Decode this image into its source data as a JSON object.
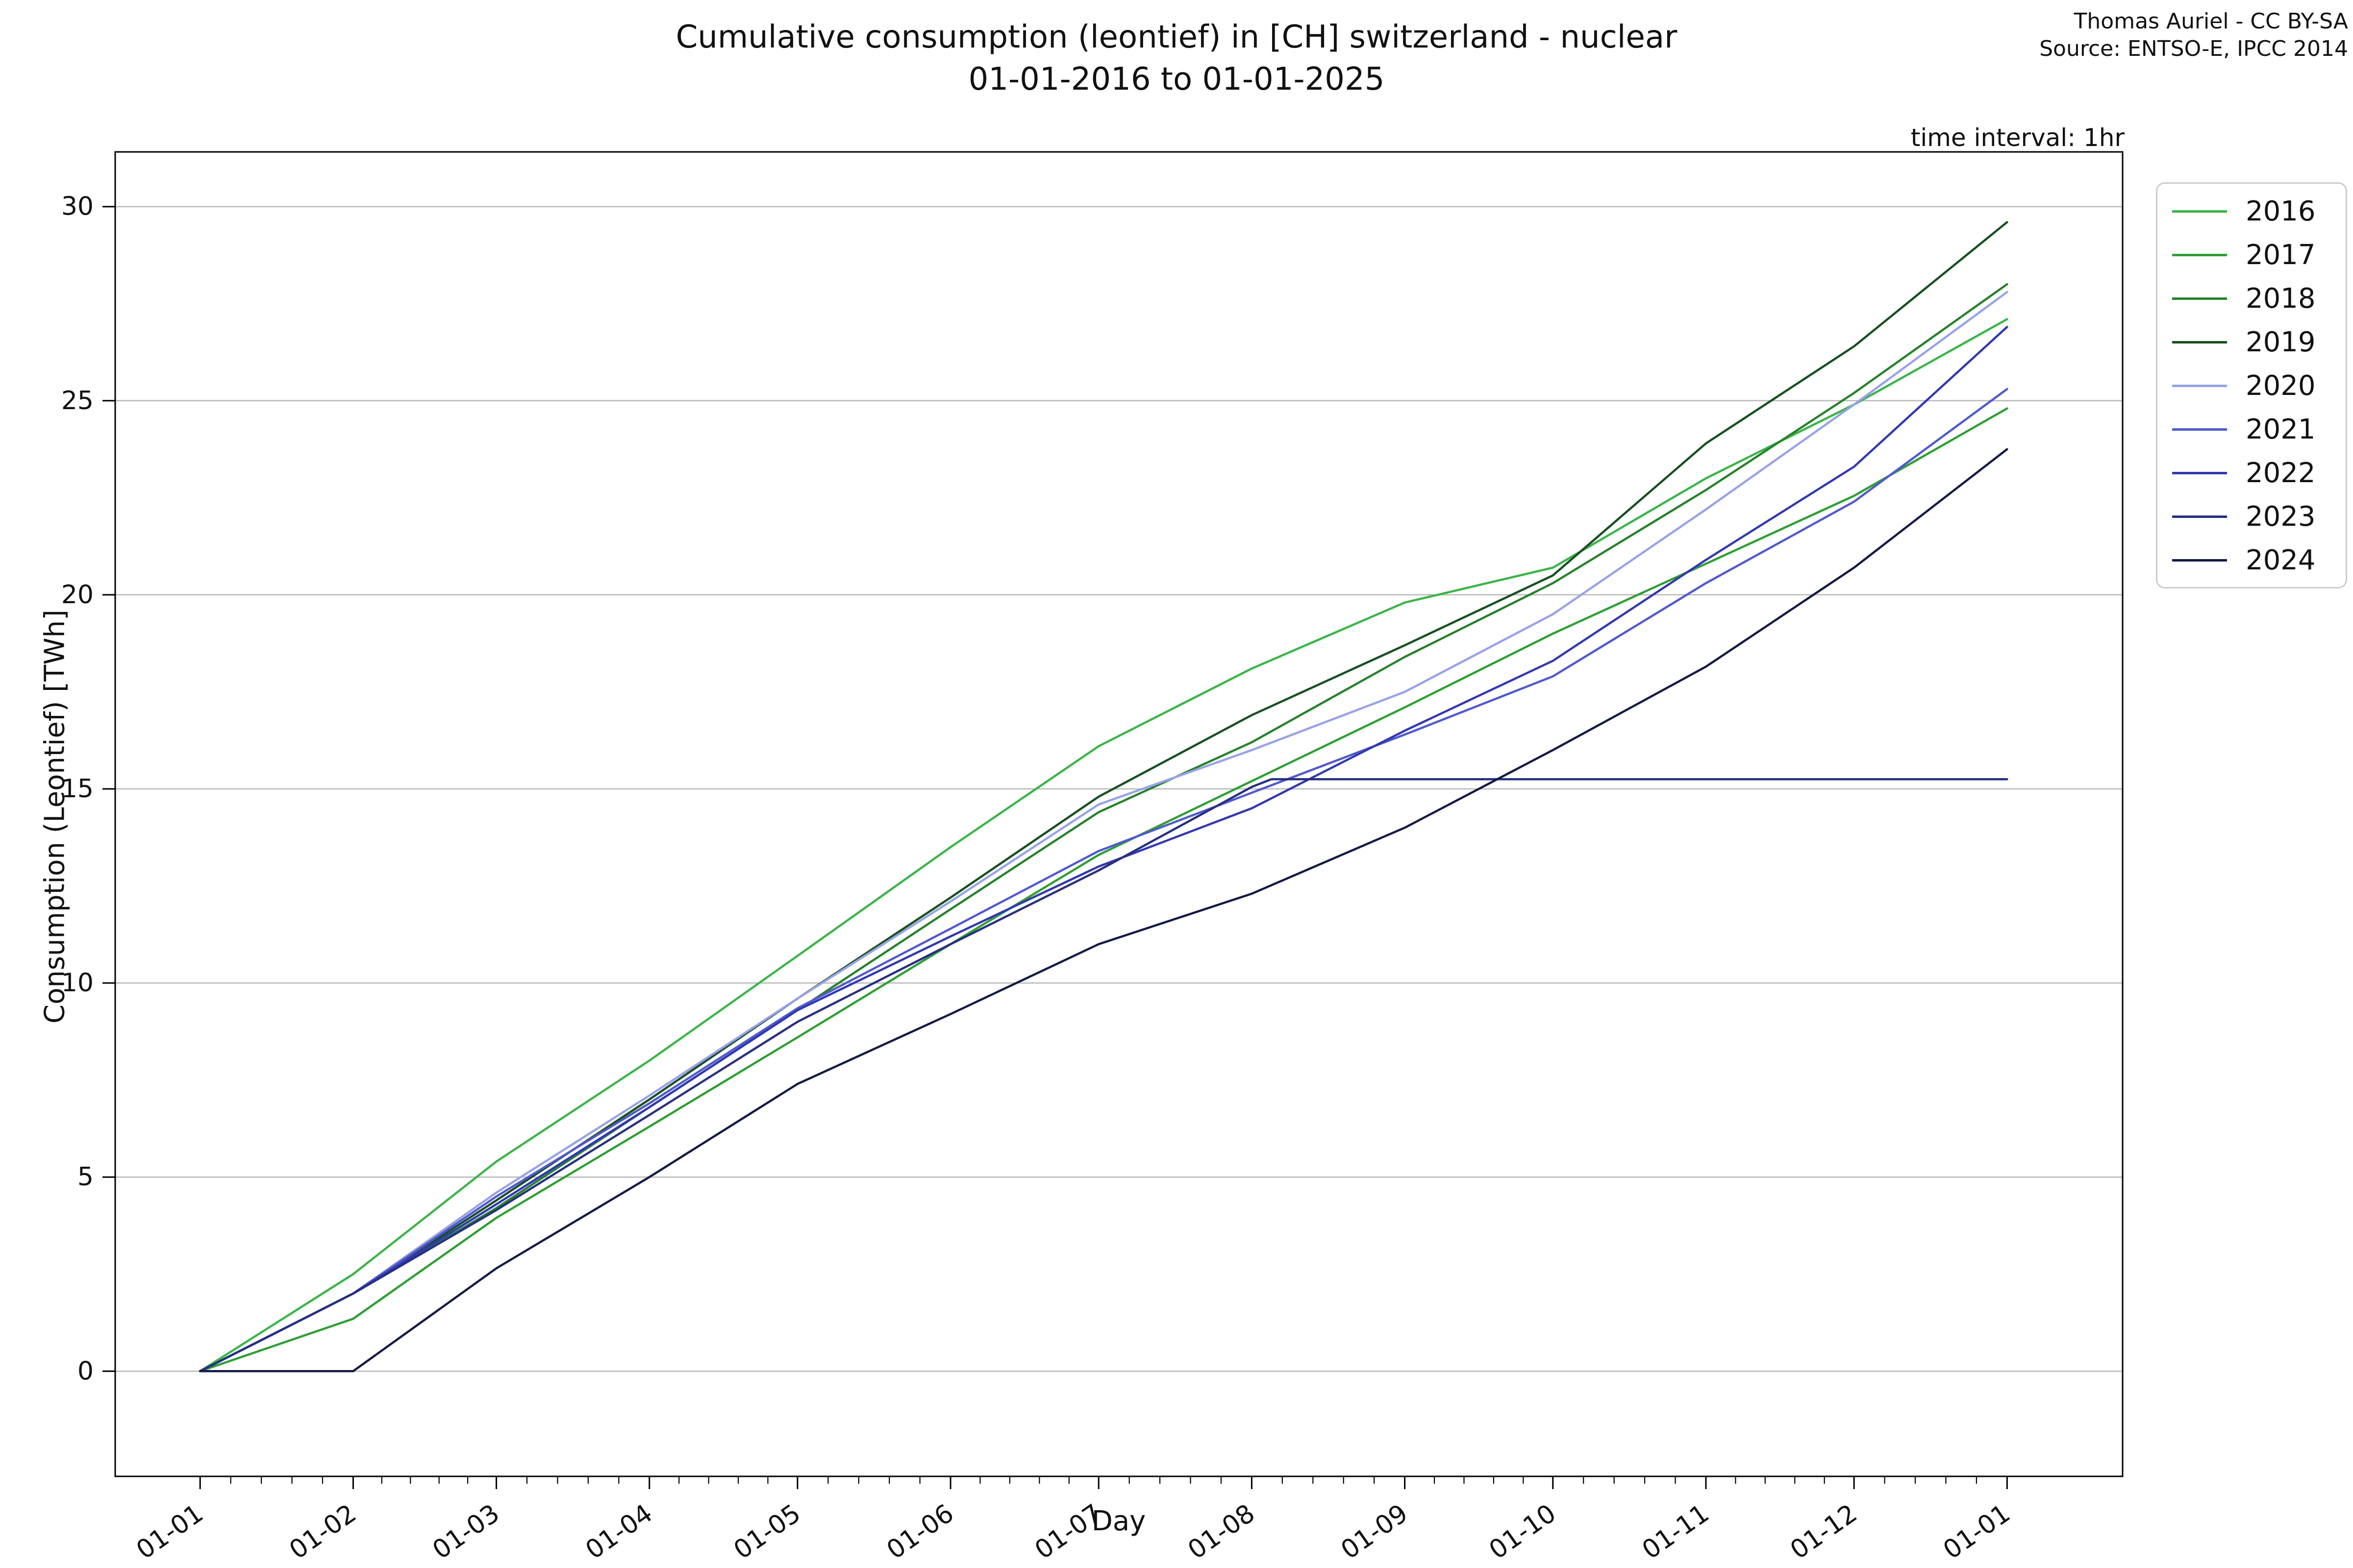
{
  "header": {
    "title_line1": "Cumulative consumption (leontief) in [CH] switzerland - nuclear",
    "title_line2": "01-01-2016 to 01-01-2025",
    "attribution_line1": "Thomas Auriel - CC BY-SA",
    "attribution_line2": "Source: ENTSO-E, IPCC 2014",
    "annotation": "time interval: 1hr"
  },
  "chart_data": {
    "type": "line",
    "title": "Cumulative consumption (leontief) in [CH] switzerland - nuclear 01-01-2016 to 01-01-2025",
    "xlabel": "Day",
    "ylabel": "Consumption (Leontief) [TWh]",
    "x_unit": "day of year (all years overlaid Jan 1 - Jan 1)",
    "xlim": [
      -17.2,
      389.4
    ],
    "ylim": [
      -2.71,
      31.41
    ],
    "x_ticks": {
      "positions": [
        0,
        31,
        60,
        91,
        121,
        152,
        182,
        213,
        244,
        274,
        305,
        335,
        366
      ],
      "labels": [
        "01-01",
        "01-02",
        "01-03",
        "01-04",
        "01-05",
        "01-06",
        "01-07",
        "01-08",
        "01-09",
        "01-10",
        "01-11",
        "01-12",
        "01-01"
      ],
      "label_rotation_deg": -35,
      "minor_subdivisions": 5
    },
    "y_ticks": [
      0,
      5,
      10,
      15,
      20,
      25,
      30
    ],
    "grid": {
      "horizontal": true,
      "vertical": false,
      "color": "#b9b9b9"
    },
    "legend_position": "upper-right-outside",
    "series": [
      {
        "name": "2016",
        "color": "#3cb44a",
        "x": [
          0,
          31,
          60,
          91,
          121,
          152,
          182,
          213,
          244,
          274,
          305,
          335,
          366
        ],
        "y": [
          0,
          2.5,
          5.4,
          8.0,
          10.7,
          13.5,
          16.1,
          18.1,
          19.8,
          20.7,
          23.0,
          24.9,
          27.1
        ]
      },
      {
        "name": "2017",
        "color": "#2f9e35",
        "x": [
          0,
          31,
          60,
          91,
          121,
          152,
          182,
          213,
          244,
          274,
          305,
          335,
          366
        ],
        "y": [
          0,
          1.35,
          3.95,
          6.3,
          8.6,
          11.0,
          13.3,
          15.2,
          17.1,
          19.0,
          20.8,
          22.55,
          24.8
        ]
      },
      {
        "name": "2018",
        "color": "#27812c",
        "x": [
          0,
          31,
          60,
          91,
          121,
          152,
          182,
          213,
          244,
          274,
          305,
          335,
          366
        ],
        "y": [
          0,
          2.0,
          4.2,
          6.8,
          9.3,
          11.9,
          14.4,
          16.2,
          18.4,
          20.3,
          22.7,
          25.2,
          28.0
        ]
      },
      {
        "name": "2019",
        "color": "#175020",
        "x": [
          0,
          31,
          60,
          91,
          121,
          152,
          182,
          213,
          244,
          274,
          305,
          335,
          366
        ],
        "y": [
          0,
          2.0,
          4.4,
          7.0,
          9.6,
          12.2,
          14.8,
          16.9,
          18.7,
          20.5,
          23.9,
          26.4,
          29.6
        ]
      },
      {
        "name": "2020",
        "color": "#98a2e9",
        "x": [
          0,
          31,
          60,
          91,
          121,
          152,
          182,
          213,
          244,
          274,
          305,
          335,
          366
        ],
        "y": [
          0,
          2.0,
          4.6,
          7.1,
          9.6,
          12.1,
          14.6,
          16.0,
          17.5,
          19.5,
          22.2,
          24.9,
          27.8
        ]
      },
      {
        "name": "2021",
        "color": "#5059ce",
        "x": [
          0,
          31,
          60,
          91,
          121,
          152,
          182,
          213,
          244,
          274,
          305,
          335,
          366
        ],
        "y": [
          0,
          2.0,
          4.5,
          6.9,
          9.35,
          11.4,
          13.4,
          14.9,
          16.4,
          17.9,
          20.3,
          22.4,
          25.3
        ]
      },
      {
        "name": "2022",
        "color": "#3138b0",
        "x": [
          0,
          31,
          60,
          91,
          121,
          152,
          182,
          213,
          244,
          274,
          305,
          335,
          366
        ],
        "y": [
          0,
          2.0,
          4.3,
          6.8,
          9.3,
          11.2,
          13.0,
          14.5,
          16.5,
          18.3,
          20.9,
          23.3,
          26.9
        ]
      },
      {
        "name": "2023",
        "color": "#272f80",
        "x": [
          0,
          31,
          60,
          91,
          121,
          152,
          182,
          213,
          217,
          366
        ],
        "y": [
          0,
          2.0,
          4.15,
          6.6,
          9.0,
          11.0,
          12.9,
          15.05,
          15.25,
          15.25
        ]
      },
      {
        "name": "2024",
        "color": "#141a45",
        "x": [
          0,
          31,
          60,
          91,
          121,
          152,
          182,
          213,
          244,
          274,
          305,
          335,
          366
        ],
        "y": [
          0,
          0,
          2.65,
          5.0,
          7.4,
          9.2,
          11.0,
          12.3,
          14.0,
          16.0,
          18.15,
          20.7,
          23.75
        ]
      }
    ]
  },
  "style": {
    "spine_color": "#000000",
    "tick_color": "#000000",
    "text_color": "#111111",
    "grid_color": "#b9b9b9",
    "legend_border_color": "#cccccc",
    "background": "#ffffff"
  }
}
